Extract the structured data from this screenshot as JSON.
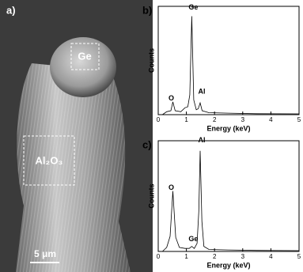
{
  "panel_a": {
    "label": "a)",
    "regions": [
      "Ge",
      "Al₂O₃"
    ],
    "scale_bar": "5 μm"
  },
  "chart_data": [
    {
      "type": "line",
      "panel_label": "b)",
      "xlabel": "Energy (keV)",
      "ylabel": "Counts",
      "color": "#000000",
      "x": [
        0.15,
        0.3,
        0.45,
        0.52,
        0.6,
        0.8,
        0.95,
        1.05,
        1.12,
        1.19,
        1.26,
        1.35,
        1.42,
        1.49,
        1.56,
        1.8,
        2.5,
        3.5,
        5
      ],
      "values": [
        0,
        3,
        4,
        13,
        4,
        3,
        7,
        8,
        20,
        100,
        15,
        5,
        6,
        12,
        4,
        2,
        1.5,
        1,
        0.8
      ],
      "xlim": [
        0,
        5
      ],
      "xticks": [
        0,
        1,
        2,
        3,
        4,
        5
      ],
      "ylim": [
        0,
        110
      ],
      "annotations": [
        "O",
        "Ge",
        "Al"
      ]
    },
    {
      "type": "line",
      "panel_label": "c)",
      "xlabel": "Energy (keV)",
      "ylabel": "Counts",
      "color": "#000000",
      "x": [
        0.15,
        0.3,
        0.42,
        0.52,
        0.62,
        0.75,
        0.95,
        1.1,
        1.19,
        1.28,
        1.38,
        1.44,
        1.49,
        1.55,
        1.62,
        1.8,
        2.5,
        3.5,
        5
      ],
      "values": [
        0,
        4,
        15,
        60,
        14,
        4,
        3,
        3,
        5,
        3,
        8,
        40,
        100,
        30,
        5,
        2,
        1.5,
        1,
        0.8
      ],
      "xlim": [
        0,
        5
      ],
      "xticks": [
        0,
        1,
        2,
        3,
        4,
        5
      ],
      "ylim": [
        0,
        110
      ],
      "annotations": [
        "O",
        "Ge",
        "Al"
      ]
    }
  ]
}
